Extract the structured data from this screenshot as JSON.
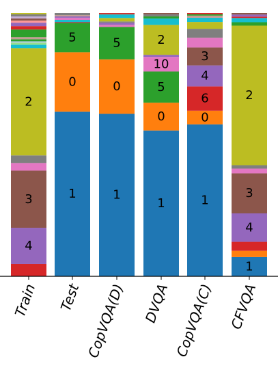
{
  "chart_data": {
    "type": "bar",
    "stacked": true,
    "normalized": true,
    "ylim": [
      0,
      1
    ],
    "categories": [
      "Train",
      "Test",
      "CopVQA(D)",
      "DVQA",
      "CopVQA(C)",
      "CFVQA"
    ],
    "colors": {
      "1": "#1f77b4",
      "0": "#ff7f0e",
      "5": "#2ca02c",
      "6": "#d62728",
      "4": "#9467bd",
      "3": "#8c564b",
      "pink": "#e377c2",
      "gray": "#7f7f7f",
      "2": "#bcbd22",
      "cyan": "#17becf",
      "extra1": "#aec7e8",
      "extra2": "#98df8a",
      "extra3": "#ff9896",
      "extra4": "#c5b0d5",
      "extra5": "#c49c94"
    },
    "bars": [
      {
        "category": "Train",
        "segments": [
          {
            "key": "6",
            "color": "#d62728",
            "value": 0.047,
            "label": ""
          },
          {
            "key": "4",
            "color": "#9467bd",
            "value": 0.138,
            "label": "4"
          },
          {
            "key": "3",
            "color": "#8c564b",
            "value": 0.218,
            "label": "3"
          },
          {
            "key": "pink",
            "color": "#e377c2",
            "value": 0.029,
            "label": ""
          },
          {
            "key": "gray",
            "color": "#7f7f7f",
            "value": 0.029,
            "label": ""
          },
          {
            "key": "2",
            "color": "#bcbd22",
            "value": 0.409,
            "label": "2"
          },
          {
            "key": "cyan",
            "color": "#17becf",
            "value": 0.013,
            "label": ""
          },
          {
            "key": "extra2",
            "color": "#98df8a",
            "value": 0.008,
            "label": ""
          },
          {
            "key": "extra1",
            "color": "#aec7e8",
            "value": 0.005,
            "label": ""
          },
          {
            "key": "5",
            "color": "#2ca02c",
            "value": 0.008,
            "label": ""
          },
          {
            "key": "extra5",
            "color": "#c49c94",
            "value": 0.008,
            "label": ""
          },
          {
            "key": "5b",
            "color": "#2ca02c",
            "value": 0.029,
            "label": ""
          },
          {
            "key": "6b",
            "color": "#d62728",
            "value": 0.013,
            "label": ""
          },
          {
            "key": "4b",
            "color": "#9467bd",
            "value": 0.013,
            "label": ""
          },
          {
            "key": "extra3",
            "color": "#ff9896",
            "value": 0.008,
            "label": ""
          },
          {
            "key": "3b",
            "color": "#8c564b",
            "value": 0.008,
            "label": ""
          },
          {
            "key": "extra4",
            "color": "#c5b0d5",
            "value": 0.008,
            "label": ""
          },
          {
            "key": "gray2",
            "color": "#7f7f7f",
            "value": 0.008,
            "label": ""
          },
          {
            "key": "2b",
            "color": "#bcbd22",
            "value": 0.005,
            "label": ""
          }
        ]
      },
      {
        "category": "Test",
        "segments": [
          {
            "key": "1",
            "color": "#1f77b4",
            "value": 0.625,
            "label": "1"
          },
          {
            "key": "0",
            "color": "#ff7f0e",
            "value": 0.226,
            "label": "0"
          },
          {
            "key": "5",
            "color": "#2ca02c",
            "value": 0.11,
            "label": "5"
          },
          {
            "key": "3",
            "color": "#8c564b",
            "value": 0.005,
            "label": ""
          },
          {
            "key": "cyan",
            "color": "#17becf",
            "value": 0.008,
            "label": ""
          },
          {
            "key": "pink",
            "color": "#e377c2",
            "value": 0.008,
            "label": ""
          },
          {
            "key": "4",
            "color": "#9467bd",
            "value": 0.005,
            "label": ""
          },
          {
            "key": "extra5",
            "color": "#c49c94",
            "value": 0.005,
            "label": ""
          },
          {
            "key": "gray",
            "color": "#7f7f7f",
            "value": 0.008,
            "label": ""
          }
        ]
      },
      {
        "category": "CopVQA(D)",
        "segments": [
          {
            "key": "1",
            "color": "#1f77b4",
            "value": 0.617,
            "label": "1"
          },
          {
            "key": "0",
            "color": "#ff7f0e",
            "value": 0.207,
            "label": "0"
          },
          {
            "key": "5",
            "color": "#2ca02c",
            "value": 0.123,
            "label": "5"
          },
          {
            "key": "pink",
            "color": "#e377c2",
            "value": 0.008,
            "label": ""
          },
          {
            "key": "4",
            "color": "#9467bd",
            "value": 0.008,
            "label": ""
          },
          {
            "key": "gray",
            "color": "#7f7f7f",
            "value": 0.005,
            "label": ""
          },
          {
            "key": "2",
            "color": "#bcbd22",
            "value": 0.013,
            "label": ""
          },
          {
            "key": "cyan",
            "color": "#17becf",
            "value": 0.013,
            "label": ""
          },
          {
            "key": "3",
            "color": "#8c564b",
            "value": 0.003,
            "label": ""
          },
          {
            "key": "6",
            "color": "#d62728",
            "value": 0.003,
            "label": ""
          }
        ]
      },
      {
        "category": "DVQA",
        "segments": [
          {
            "key": "1",
            "color": "#1f77b4",
            "value": 0.551,
            "label": "1"
          },
          {
            "key": "0",
            "color": "#ff7f0e",
            "value": 0.105,
            "label": "0"
          },
          {
            "key": "5",
            "color": "#2ca02c",
            "value": 0.118,
            "label": "5"
          },
          {
            "key": "10",
            "color": "#e377c2",
            "value": 0.055,
            "label": "10"
          },
          {
            "key": "4",
            "color": "#9467bd",
            "value": 0.008,
            "label": ""
          },
          {
            "key": "2",
            "color": "#bcbd22",
            "value": 0.113,
            "label": "2"
          },
          {
            "key": "cyan",
            "color": "#17becf",
            "value": 0.024,
            "label": ""
          },
          {
            "key": "5b",
            "color": "#2ca02c",
            "value": 0.008,
            "label": ""
          },
          {
            "key": "gray",
            "color": "#7f7f7f",
            "value": 0.008,
            "label": ""
          },
          {
            "key": "3",
            "color": "#8c564b",
            "value": 0.005,
            "label": ""
          }
        ]
      },
      {
        "category": "CopVQA(C)",
        "segments": [
          {
            "key": "1",
            "color": "#1f77b4",
            "value": 0.577,
            "label": "1"
          },
          {
            "key": "0",
            "color": "#ff7f0e",
            "value": 0.052,
            "label": "0"
          },
          {
            "key": "6",
            "color": "#d62728",
            "value": 0.092,
            "label": "6"
          },
          {
            "key": "4",
            "color": "#9467bd",
            "value": 0.08,
            "label": "4"
          },
          {
            "key": "3",
            "color": "#8c564b",
            "value": 0.068,
            "label": "3"
          },
          {
            "key": "pink",
            "color": "#e377c2",
            "value": 0.037,
            "label": ""
          },
          {
            "key": "gray",
            "color": "#7f7f7f",
            "value": 0.034,
            "label": ""
          },
          {
            "key": "2",
            "color": "#bcbd22",
            "value": 0.026,
            "label": ""
          },
          {
            "key": "cyan",
            "color": "#17becf",
            "value": 0.016,
            "label": ""
          },
          {
            "key": "extra5",
            "color": "#c49c94",
            "value": 0.008,
            "label": ""
          },
          {
            "key": "5",
            "color": "#2ca02c",
            "value": 0.005,
            "label": ""
          },
          {
            "key": "6b",
            "color": "#d62728",
            "value": 0.005,
            "label": ""
          }
        ]
      },
      {
        "category": "CFVQA",
        "segments": [
          {
            "key": "1",
            "color": "#1f77b4",
            "value": 0.073,
            "label": "1"
          },
          {
            "key": "0",
            "color": "#ff7f0e",
            "value": 0.024,
            "label": ""
          },
          {
            "key": "6",
            "color": "#d62728",
            "value": 0.034,
            "label": ""
          },
          {
            "key": "4",
            "color": "#9467bd",
            "value": 0.108,
            "label": "4"
          },
          {
            "key": "3",
            "color": "#8c564b",
            "value": 0.152,
            "label": "3"
          },
          {
            "key": "pink",
            "color": "#e377c2",
            "value": 0.018,
            "label": ""
          },
          {
            "key": "gray",
            "color": "#7f7f7f",
            "value": 0.013,
            "label": ""
          },
          {
            "key": "2",
            "color": "#bcbd22",
            "value": 0.53,
            "label": "2"
          },
          {
            "key": "5",
            "color": "#2ca02c",
            "value": 0.013,
            "label": ""
          },
          {
            "key": "cyan",
            "color": "#17becf",
            "value": 0.016,
            "label": ""
          },
          {
            "key": "6b",
            "color": "#d62728",
            "value": 0.005,
            "label": ""
          },
          {
            "key": "4b",
            "color": "#9467bd",
            "value": 0.008,
            "label": ""
          },
          {
            "key": "3b",
            "color": "#8c564b",
            "value": 0.006,
            "label": ""
          }
        ]
      }
    ]
  }
}
